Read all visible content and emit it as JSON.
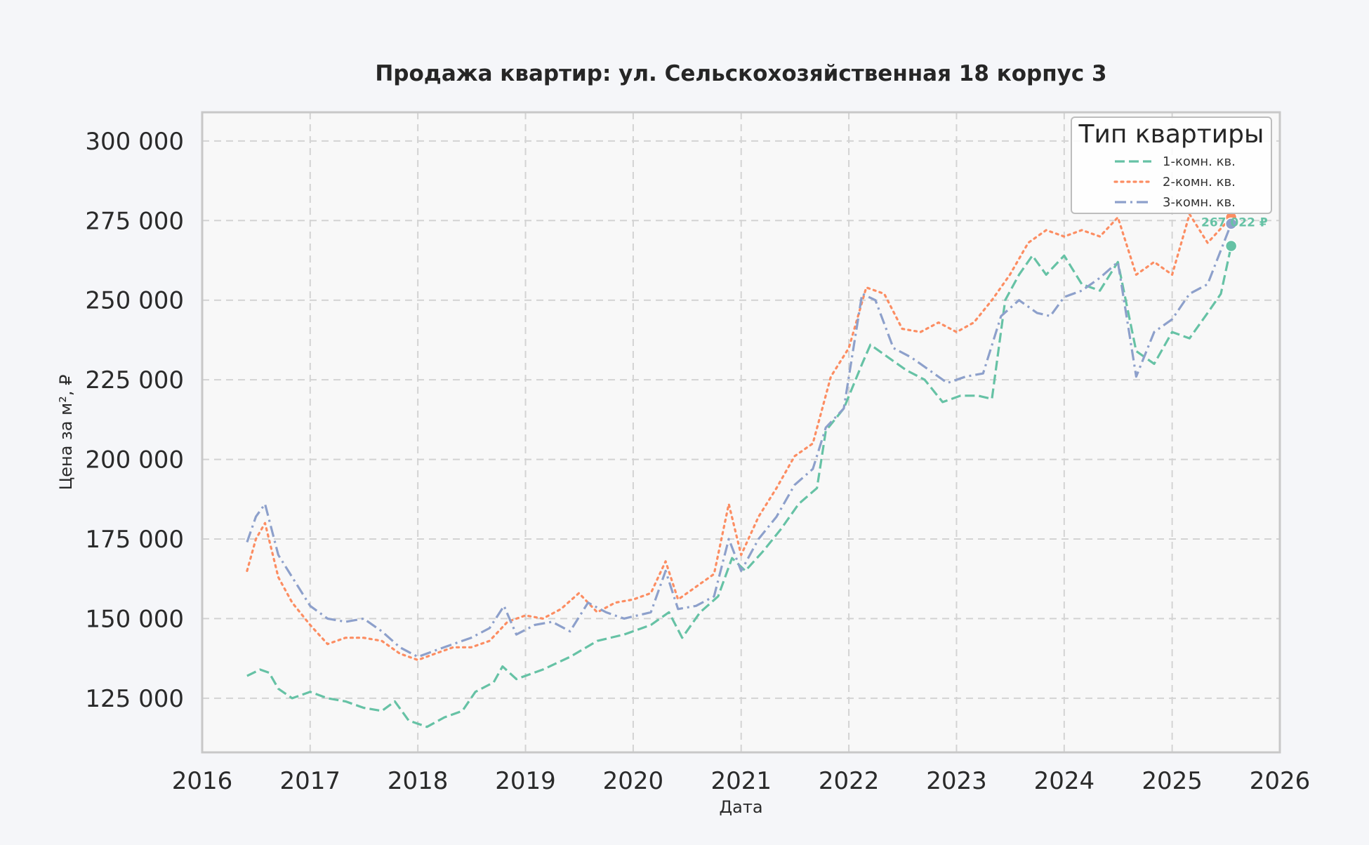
{
  "colors": {
    "background": "#f5f6f9",
    "plot_background": "#f8f8f8",
    "grid": "#d3d3d3",
    "frame": "#c8c8c8",
    "one_room": "#66c2a5",
    "two_room": "#fc8d62",
    "three_room": "#8da0cb"
  },
  "chart_data": {
    "type": "line",
    "title": "Продажа квартир: ул. Сельскохозяйственная 18 корпус 3",
    "xlabel": "Дата",
    "ylabel": "Цена за м², ₽",
    "x_ticks": [
      "2016",
      "2017",
      "2018",
      "2019",
      "2020",
      "2021",
      "2022",
      "2023",
      "2024",
      "2025",
      "2026"
    ],
    "y_ticks": [
      "125 000",
      "150 000",
      "175 000",
      "200 000",
      "225 000",
      "250 000",
      "275 000",
      "300 000"
    ],
    "xlim": [
      "2016-01-01",
      "2026-01-01"
    ],
    "ylim": [
      108000,
      309000
    ],
    "grid": true,
    "legend": {
      "title": "Тип квартиры",
      "position": "top-right"
    },
    "end_label": "267 022 ₽",
    "series": [
      {
        "name": "1-комн. кв.",
        "line_style": "dashed",
        "color": "#66c2a5",
        "points": [
          [
            "2016-06-01",
            132000
          ],
          [
            "2016-07-15",
            134000
          ],
          [
            "2016-08-15",
            133000
          ],
          [
            "2016-09-15",
            128000
          ],
          [
            "2016-11-01",
            125000
          ],
          [
            "2017-01-01",
            127000
          ],
          [
            "2017-03-01",
            125000
          ],
          [
            "2017-05-01",
            124000
          ],
          [
            "2017-07-01",
            122000
          ],
          [
            "2017-09-01",
            121000
          ],
          [
            "2017-10-15",
            124000
          ],
          [
            "2017-12-01",
            118000
          ],
          [
            "2018-02-01",
            116000
          ],
          [
            "2018-04-01",
            119000
          ],
          [
            "2018-06-01",
            121000
          ],
          [
            "2018-07-15",
            127000
          ],
          [
            "2018-09-15",
            130000
          ],
          [
            "2018-10-15",
            135000
          ],
          [
            "2018-12-01",
            131000
          ],
          [
            "2019-03-01",
            134000
          ],
          [
            "2019-06-01",
            138000
          ],
          [
            "2019-09-01",
            143000
          ],
          [
            "2019-12-01",
            145000
          ],
          [
            "2020-03-01",
            148000
          ],
          [
            "2020-05-01",
            152000
          ],
          [
            "2020-06-15",
            144000
          ],
          [
            "2020-08-15",
            152000
          ],
          [
            "2020-10-15",
            157000
          ],
          [
            "2020-12-01",
            169000
          ],
          [
            "2021-01-15",
            165000
          ],
          [
            "2021-03-15",
            171000
          ],
          [
            "2021-05-15",
            178000
          ],
          [
            "2021-07-15",
            186000
          ],
          [
            "2021-09-15",
            191000
          ],
          [
            "2021-10-15",
            209000
          ],
          [
            "2021-12-15",
            216000
          ],
          [
            "2022-02-15",
            230000
          ],
          [
            "2022-03-15",
            236000
          ],
          [
            "2022-05-15",
            232000
          ],
          [
            "2022-07-15",
            228000
          ],
          [
            "2022-09-15",
            225000
          ],
          [
            "2022-11-15",
            218000
          ],
          [
            "2023-01-15",
            220000
          ],
          [
            "2023-03-15",
            220000
          ],
          [
            "2023-05-01",
            219000
          ],
          [
            "2023-06-15",
            250000
          ],
          [
            "2023-08-01",
            258000
          ],
          [
            "2023-09-15",
            264000
          ],
          [
            "2023-11-01",
            258000
          ],
          [
            "2024-01-01",
            264000
          ],
          [
            "2024-03-01",
            255000
          ],
          [
            "2024-05-01",
            253000
          ],
          [
            "2024-07-01",
            262000
          ],
          [
            "2024-09-01",
            234000
          ],
          [
            "2024-11-01",
            230000
          ],
          [
            "2025-01-01",
            240000
          ],
          [
            "2025-03-01",
            238000
          ],
          [
            "2025-05-01",
            246000
          ],
          [
            "2025-06-15",
            252000
          ],
          [
            "2025-07-20",
            267022
          ]
        ]
      },
      {
        "name": "2-комн. кв.",
        "line_style": "dotted",
        "color": "#fc8d62",
        "points": [
          [
            "2016-06-01",
            165000
          ],
          [
            "2016-07-01",
            175000
          ],
          [
            "2016-08-01",
            180000
          ],
          [
            "2016-09-15",
            163000
          ],
          [
            "2016-11-01",
            155000
          ],
          [
            "2017-01-01",
            148000
          ],
          [
            "2017-03-01",
            142000
          ],
          [
            "2017-05-01",
            144000
          ],
          [
            "2017-07-01",
            144000
          ],
          [
            "2017-09-01",
            143000
          ],
          [
            "2017-11-01",
            139000
          ],
          [
            "2018-01-01",
            137000
          ],
          [
            "2018-03-01",
            139000
          ],
          [
            "2018-05-01",
            141000
          ],
          [
            "2018-07-01",
            141000
          ],
          [
            "2018-09-01",
            143000
          ],
          [
            "2018-11-01",
            149000
          ],
          [
            "2019-01-01",
            151000
          ],
          [
            "2019-03-01",
            150000
          ],
          [
            "2019-05-01",
            153000
          ],
          [
            "2019-07-01",
            158000
          ],
          [
            "2019-09-01",
            152000
          ],
          [
            "2019-11-01",
            155000
          ],
          [
            "2020-01-01",
            156000
          ],
          [
            "2020-03-01",
            158000
          ],
          [
            "2020-04-20",
            168000
          ],
          [
            "2020-06-01",
            156000
          ],
          [
            "2020-08-01",
            160000
          ],
          [
            "2020-10-01",
            164000
          ],
          [
            "2020-11-20",
            186000
          ],
          [
            "2021-01-01",
            170000
          ],
          [
            "2021-03-01",
            182000
          ],
          [
            "2021-05-01",
            191000
          ],
          [
            "2021-07-01",
            201000
          ],
          [
            "2021-09-01",
            205000
          ],
          [
            "2021-11-01",
            226000
          ],
          [
            "2022-01-01",
            235000
          ],
          [
            "2022-03-01",
            254000
          ],
          [
            "2022-05-01",
            252000
          ],
          [
            "2022-07-01",
            241000
          ],
          [
            "2022-09-01",
            240000
          ],
          [
            "2022-11-01",
            243000
          ],
          [
            "2023-01-01",
            240000
          ],
          [
            "2023-03-01",
            243000
          ],
          [
            "2023-05-01",
            250000
          ],
          [
            "2023-07-01",
            258000
          ],
          [
            "2023-09-01",
            268000
          ],
          [
            "2023-11-01",
            272000
          ],
          [
            "2024-01-01",
            270000
          ],
          [
            "2024-03-01",
            272000
          ],
          [
            "2024-05-01",
            270000
          ],
          [
            "2024-07-01",
            276000
          ],
          [
            "2024-09-01",
            258000
          ],
          [
            "2024-11-01",
            262000
          ],
          [
            "2025-01-01",
            258000
          ],
          [
            "2025-03-01",
            277000
          ],
          [
            "2025-05-01",
            268000
          ],
          [
            "2025-07-20",
            276000
          ]
        ]
      },
      {
        "name": "3-комн. кв.",
        "line_style": "dashdot",
        "color": "#8da0cb",
        "points": [
          [
            "2016-06-01",
            174000
          ],
          [
            "2016-07-01",
            182000
          ],
          [
            "2016-08-01",
            186000
          ],
          [
            "2016-09-15",
            170000
          ],
          [
            "2016-11-01",
            163000
          ],
          [
            "2017-01-01",
            154000
          ],
          [
            "2017-03-01",
            150000
          ],
          [
            "2017-05-01",
            149000
          ],
          [
            "2017-07-01",
            150000
          ],
          [
            "2017-09-01",
            146000
          ],
          [
            "2017-11-01",
            141000
          ],
          [
            "2018-01-01",
            138000
          ],
          [
            "2018-03-01",
            140000
          ],
          [
            "2018-05-01",
            142000
          ],
          [
            "2018-07-01",
            144000
          ],
          [
            "2018-09-01",
            147000
          ],
          [
            "2018-10-20",
            154000
          ],
          [
            "2018-12-01",
            145000
          ],
          [
            "2019-02-01",
            148000
          ],
          [
            "2019-04-01",
            149000
          ],
          [
            "2019-06-01",
            146000
          ],
          [
            "2019-08-01",
            155000
          ],
          [
            "2019-10-01",
            152000
          ],
          [
            "2019-12-01",
            150000
          ],
          [
            "2020-03-01",
            152000
          ],
          [
            "2020-04-20",
            165000
          ],
          [
            "2020-06-01",
            153000
          ],
          [
            "2020-08-01",
            154000
          ],
          [
            "2020-10-01",
            157000
          ],
          [
            "2020-11-20",
            175000
          ],
          [
            "2021-01-01",
            165000
          ],
          [
            "2021-03-01",
            175000
          ],
          [
            "2021-05-01",
            182000
          ],
          [
            "2021-07-01",
            192000
          ],
          [
            "2021-09-01",
            197000
          ],
          [
            "2021-10-15",
            210000
          ],
          [
            "2021-12-15",
            216000
          ],
          [
            "2022-02-15",
            252000
          ],
          [
            "2022-04-01",
            250000
          ],
          [
            "2022-06-01",
            235000
          ],
          [
            "2022-08-01",
            232000
          ],
          [
            "2022-10-01",
            228000
          ],
          [
            "2022-12-01",
            224000
          ],
          [
            "2023-02-01",
            226000
          ],
          [
            "2023-04-01",
            227000
          ],
          [
            "2023-06-01",
            245000
          ],
          [
            "2023-08-01",
            250000
          ],
          [
            "2023-10-01",
            246000
          ],
          [
            "2023-11-15",
            245000
          ],
          [
            "2024-01-01",
            251000
          ],
          [
            "2024-03-01",
            253000
          ],
          [
            "2024-05-01",
            257000
          ],
          [
            "2024-07-01",
            262000
          ],
          [
            "2024-09-01",
            226000
          ],
          [
            "2024-11-01",
            240000
          ],
          [
            "2025-01-01",
            244000
          ],
          [
            "2025-03-01",
            252000
          ],
          [
            "2025-05-01",
            255000
          ],
          [
            "2025-07-20",
            274000
          ]
        ]
      }
    ]
  }
}
